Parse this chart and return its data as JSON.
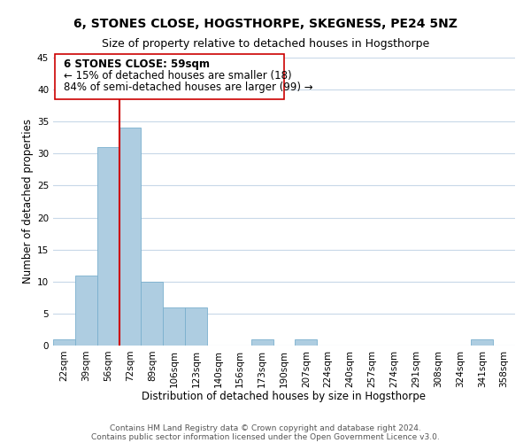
{
  "title": "6, STONES CLOSE, HOGSTHORPE, SKEGNESS, PE24 5NZ",
  "subtitle": "Size of property relative to detached houses in Hogsthorpe",
  "xlabel": "Distribution of detached houses by size in Hogsthorpe",
  "ylabel": "Number of detached properties",
  "bar_labels": [
    "22sqm",
    "39sqm",
    "56sqm",
    "72sqm",
    "89sqm",
    "106sqm",
    "123sqm",
    "140sqm",
    "156sqm",
    "173sqm",
    "190sqm",
    "207sqm",
    "224sqm",
    "240sqm",
    "257sqm",
    "274sqm",
    "291sqm",
    "308sqm",
    "324sqm",
    "341sqm",
    "358sqm"
  ],
  "bar_values": [
    1,
    11,
    31,
    34,
    10,
    6,
    6,
    0,
    0,
    1,
    0,
    1,
    0,
    0,
    0,
    0,
    0,
    0,
    0,
    1,
    0
  ],
  "bar_color": "#aecde1",
  "bar_edge_color": "#7ab0ce",
  "ylim": [
    0,
    45
  ],
  "yticks": [
    0,
    5,
    10,
    15,
    20,
    25,
    30,
    35,
    40,
    45
  ],
  "vline_color": "#cc0000",
  "vline_x_index": 2.5,
  "annotation_line1": "6 STONES CLOSE: 59sqm",
  "annotation_line2": "← 15% of detached houses are smaller (18)",
  "annotation_line3": "84% of semi-detached houses are larger (99) →",
  "footer_line1": "Contains HM Land Registry data © Crown copyright and database right 2024.",
  "footer_line2": "Contains public sector information licensed under the Open Government Licence v3.0.",
  "background_color": "#ffffff",
  "grid_color": "#c8d8e8",
  "title_fontsize": 10,
  "subtitle_fontsize": 9,
  "axis_label_fontsize": 8.5,
  "tick_fontsize": 7.5,
  "footer_fontsize": 6.5,
  "annotation_fontsize": 8.5
}
